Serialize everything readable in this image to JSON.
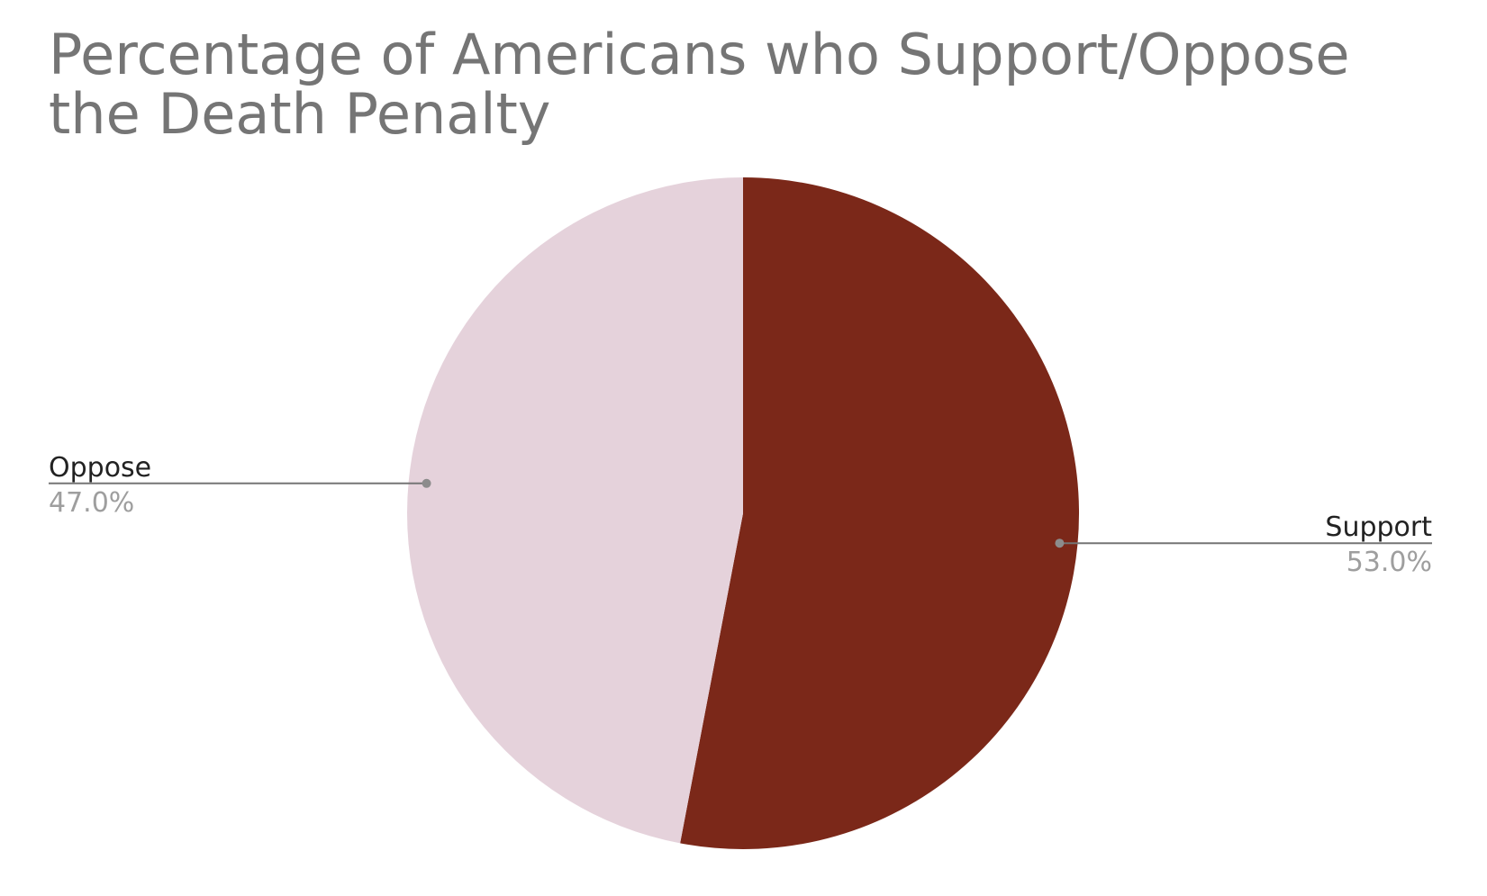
{
  "chart_data": {
    "type": "pie",
    "title": "Percentage of Americans who Support/Oppose the Death Penalty",
    "slices": [
      {
        "label": "Support",
        "value": 53.0,
        "value_label": "53.0%",
        "color": "#7b2819"
      },
      {
        "label": "Oppose",
        "value": 47.0,
        "value_label": "47.0%",
        "color": "#e5d2db"
      }
    ],
    "start_angle": "12 o'clock",
    "direction": "clockwise",
    "legend": "none",
    "label_placement": "outside with leader lines"
  }
}
